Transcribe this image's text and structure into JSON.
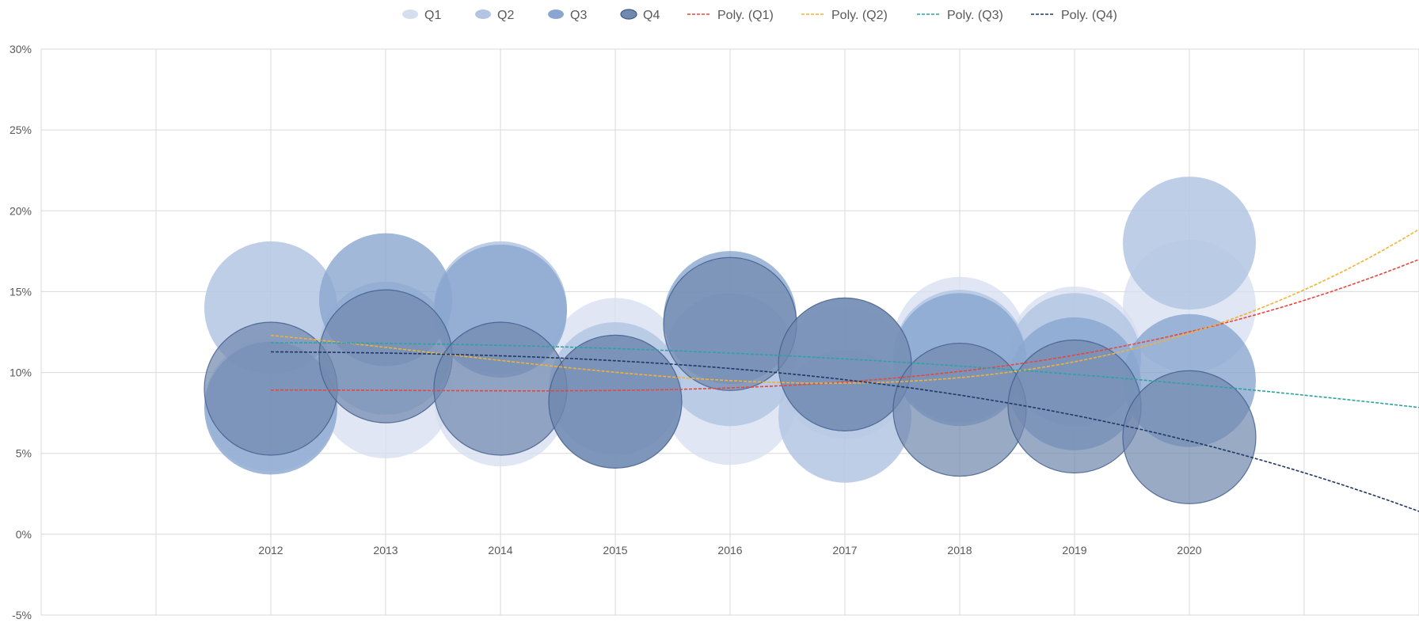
{
  "chart_data": {
    "type": "bubble",
    "title": "",
    "xlabel": "",
    "ylabel": "",
    "x_categories": [
      "2012",
      "2013",
      "2014",
      "2015",
      "2016",
      "2017",
      "2018",
      "2019",
      "2020"
    ],
    "xlim": [
      2010,
      2022
    ],
    "ylim": [
      -5,
      30
    ],
    "y_ticks": [
      30,
      25,
      20,
      15,
      10,
      5,
      0,
      -5
    ],
    "y_tick_labels": [
      "30%",
      "25%",
      "20%",
      "15%",
      "10%",
      "5%",
      "0%",
      "-5%"
    ],
    "legend_position": "top",
    "grid": true,
    "series": [
      {
        "name": "Q1",
        "color": "#d5deef",
        "opacity": 0.75,
        "stroke": "none",
        "points": [
          [
            2012,
            8
          ],
          [
            2013,
            8.8
          ],
          [
            2014,
            8.3
          ],
          [
            2015,
            10.5
          ],
          [
            2016,
            8.4
          ],
          [
            2017,
            10
          ],
          [
            2018,
            11.8
          ],
          [
            2019,
            11.2
          ],
          [
            2020,
            14.1
          ]
        ]
      },
      {
        "name": "Q2",
        "color": "#b3c5e3",
        "opacity": 0.85,
        "stroke": "none",
        "points": [
          [
            2012,
            14
          ],
          [
            2013,
            11.5
          ],
          [
            2014,
            14
          ],
          [
            2015,
            9
          ],
          [
            2016,
            10.8
          ],
          [
            2017,
            7.3
          ],
          [
            2018,
            11
          ],
          [
            2019,
            10.8
          ],
          [
            2020,
            18
          ]
        ]
      },
      {
        "name": "Q3",
        "color": "#8aa6d0",
        "opacity": 0.8,
        "stroke": "none",
        "points": [
          [
            2012,
            7.8
          ],
          [
            2013,
            14.5
          ],
          [
            2014,
            13.8
          ],
          [
            2015,
            8.2
          ],
          [
            2016,
            13.4
          ],
          [
            2017,
            10.5
          ],
          [
            2018,
            10.8
          ],
          [
            2019,
            9.3
          ],
          [
            2020,
            9.5
          ]
        ]
      },
      {
        "name": "Q4",
        "color": "#7289ae",
        "opacity": 0.72,
        "stroke": "#3e5a8a",
        "points": [
          [
            2012,
            9
          ],
          [
            2013,
            11
          ],
          [
            2014,
            9
          ],
          [
            2015,
            8.2
          ],
          [
            2016,
            13
          ],
          [
            2017,
            10.5
          ],
          [
            2018,
            7.7
          ],
          [
            2019,
            7.9
          ],
          [
            2020,
            6
          ]
        ]
      }
    ],
    "bubble_size": 1,
    "trendlines": [
      {
        "name": "Poly. (Q1)",
        "color": "#e8453c",
        "coef": [
          0.000185,
          0.2049,
          -0.0565
        ]
      },
      {
        "name": "Poly. (Q2)",
        "color": "#f2b233",
        "coef": [
          0.0009,
          -0.2063,
          -0.0079
        ]
      },
      {
        "name": "Poly. (Q3)",
        "color": "#2ea2a2",
        "coef": [
          0.1111,
          -0.0285,
          -0.7143
        ]
      },
      {
        "name": "Poly. (Q4)",
        "color": "#1f3864",
        "coef": [
          0.0889,
          0.1175,
          -0.2286
        ]
      }
    ]
  }
}
